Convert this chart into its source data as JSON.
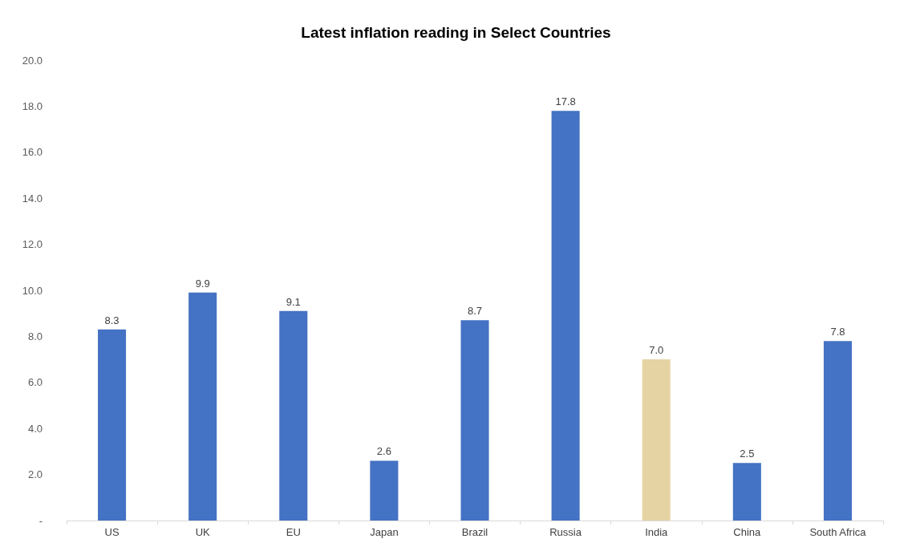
{
  "chart_data": {
    "type": "bar",
    "title": "Latest inflation reading in Select Countries",
    "categories": [
      "US",
      "UK",
      "EU",
      "Japan",
      "Brazil",
      "Russia",
      "India",
      "China",
      "South Africa"
    ],
    "values": [
      8.3,
      9.9,
      9.1,
      2.6,
      8.7,
      17.8,
      7.0,
      2.5,
      7.8
    ],
    "value_labels": [
      "8.3",
      "9.9",
      "9.1",
      "2.6",
      "8.7",
      "17.8",
      "7.0",
      "2.5",
      "7.8"
    ],
    "colors": [
      "#4472c4",
      "#4472c4",
      "#4472c4",
      "#4472c4",
      "#4472c4",
      "#4472c4",
      "#e6d3a3",
      "#4472c4",
      "#4472c4"
    ],
    "ylim": [
      0,
      20
    ],
    "yticks": [
      {
        "value": 0,
        "label": "-"
      },
      {
        "value": 2,
        "label": "2.0"
      },
      {
        "value": 4,
        "label": "4.0"
      },
      {
        "value": 6,
        "label": "6.0"
      },
      {
        "value": 8,
        "label": "8.0"
      },
      {
        "value": 10,
        "label": "10.0"
      },
      {
        "value": 12,
        "label": "12.0"
      },
      {
        "value": 14,
        "label": "14.0"
      },
      {
        "value": 16,
        "label": "16.0"
      },
      {
        "value": 18,
        "label": "18.0"
      },
      {
        "value": 20,
        "label": "20.0"
      }
    ],
    "grid": false
  }
}
